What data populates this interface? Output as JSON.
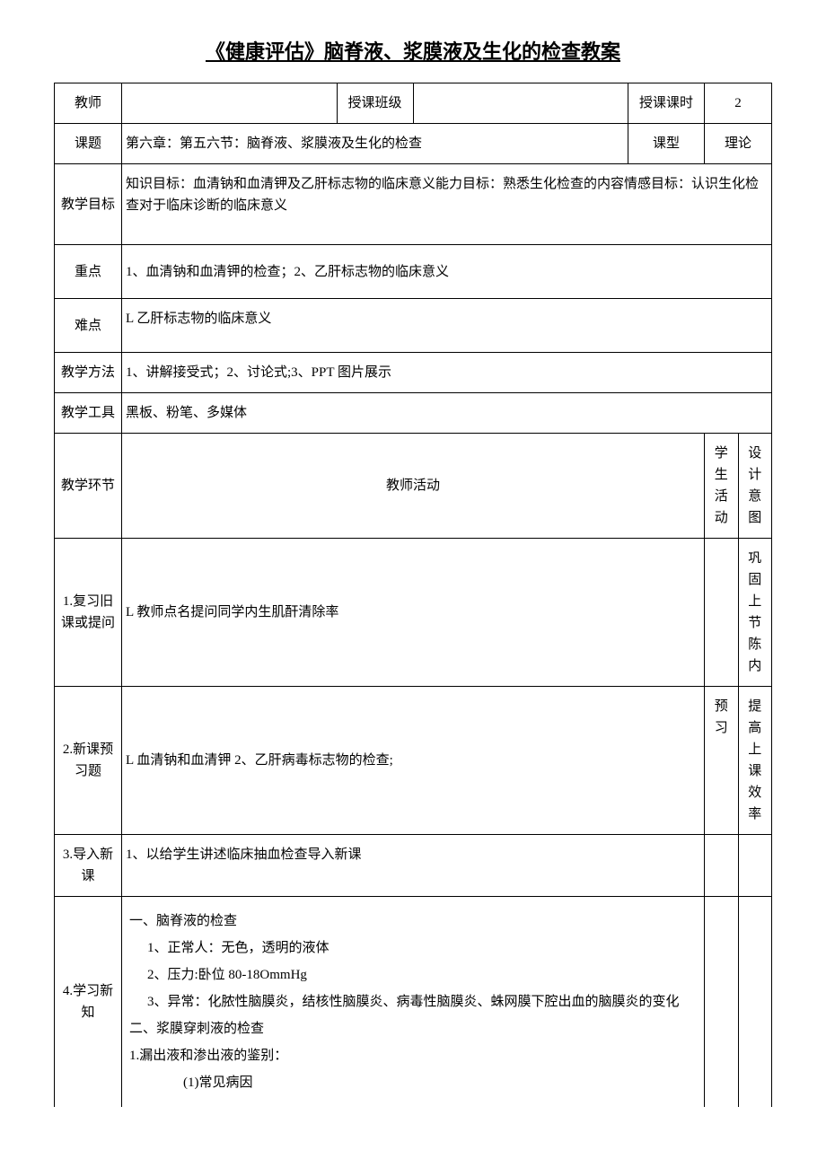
{
  "title": "《健康评估》脑脊液、浆膜液及生化的检查教案",
  "header": {
    "teacher_label": "教师",
    "teacher_value": "",
    "class_label": "授课班级",
    "class_value": "",
    "hours_label": "授课课时",
    "hours_value": "2",
    "topic_label": "课题",
    "topic_value": "第六章：第五六节：脑脊液、浆膜液及生化的检查",
    "type_label": "课型",
    "type_value": "理论"
  },
  "objectives": {
    "label": "教学目标",
    "content": "知识目标：血清钠和血清钾及乙肝标志物的临床意义能力目标：熟悉生化检查的内容情感目标：认识生化检查对于临床诊断的临床意义"
  },
  "key_points": {
    "label": "重点",
    "content": "1、血清钠和血清钾的检查；2、乙肝标志物的临床意义"
  },
  "difficulties": {
    "label": "难点",
    "content": "L 乙肝标志物的临床意义"
  },
  "methods": {
    "label": "教学方法",
    "content": "1、讲解接受式；2、讨论式;3、PPT 图片展示"
  },
  "tools": {
    "label": "教学工具",
    "content": "黑板、粉笔、多媒体"
  },
  "section_header": {
    "phase_label": "教学环节",
    "teacher_activity_label": "教师活动",
    "student_activity_label": "学生活动",
    "intent_label": "设计意图"
  },
  "rows": [
    {
      "phase": "1.复习旧课或提问",
      "teacher": "L 教师点名提问同学内生肌酐清除率",
      "student": "",
      "intent": "巩固上节陈内"
    },
    {
      "phase": "2.新课预习题",
      "teacher": "L 血清钠和血清钾 2、乙肝病毒标志物的检查;",
      "student": "预习",
      "intent": "提高上课效率"
    },
    {
      "phase": "3.导入新课",
      "teacher": "1、以给学生讲述临床抽血检查导入新课",
      "student": "",
      "intent": ""
    }
  ],
  "row4": {
    "phase": "4.学习新知",
    "lines": [
      {
        "text": "一、脑脊液的检查",
        "indent": 1
      },
      {
        "text": "1、正常人：无色，透明的液体",
        "indent": 2
      },
      {
        "text": "2、压力:卧位 80-18OmmHg",
        "indent": 2
      },
      {
        "text": "3、异常：化脓性脑膜炎，结核性脑膜炎、病毒性脑膜炎、蛛网膜下腔出血的脑膜炎的变化",
        "indent": 2
      },
      {
        "text": "二、浆膜穿刺液的检查",
        "indent": 1
      },
      {
        "text": "1.漏出液和渗出液的鉴别：",
        "indent": 1
      },
      {
        "text": "(1)常见病因",
        "indent": 3
      }
    ],
    "student": "",
    "intent": ""
  }
}
